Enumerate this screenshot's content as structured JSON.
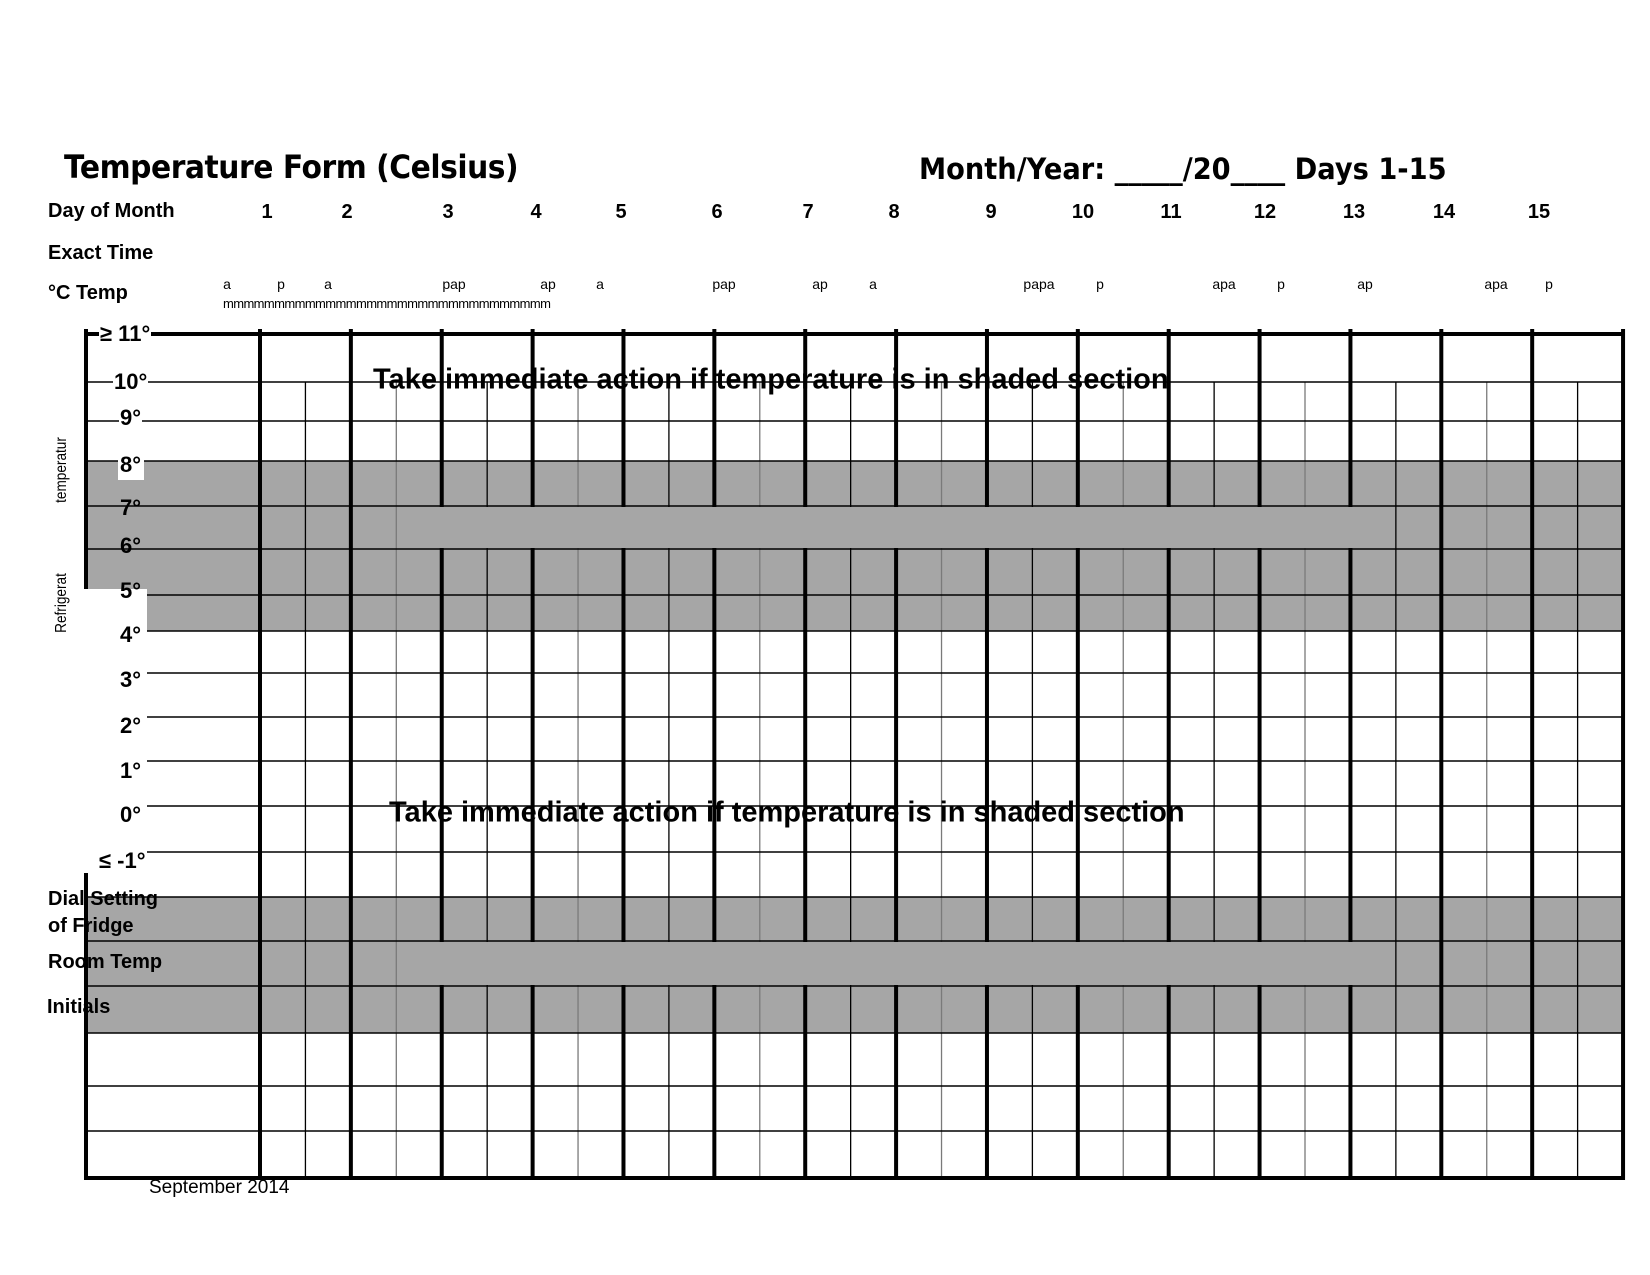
{
  "header": {
    "title": "Temperature Form (Celsius)",
    "month_year_label": "Month/Year: _____/20____ Days 1-15"
  },
  "row_labels": {
    "day_of_month": "Day of Month",
    "exact_time": "Exact Time",
    "temp": "°C Temp"
  },
  "days": [
    "1",
    "2",
    "3",
    "4",
    "5",
    "6",
    "7",
    "8",
    "9",
    "10",
    "11",
    "12",
    "13",
    "14",
    "15"
  ],
  "time_markers": [
    "a",
    "p",
    "a",
    "pap",
    "ap",
    "a",
    "pap",
    "ap",
    "a",
    "papa",
    "p",
    "apa",
    "p",
    "ap",
    "apa",
    "p"
  ],
  "time_marker_underline": "mmmmmmmmmmmmmmmmmmmmmmmmmmmmmmmm",
  "temperature_scale": [
    "≥ 11°",
    "10°",
    "9°",
    "8°",
    "7°",
    "6°",
    "5°",
    "4°",
    "3°",
    "2°",
    "1°",
    "0°",
    "≤ -1°"
  ],
  "side_label": {
    "top": "temperatur",
    "bottom": "Refrigerat"
  },
  "warnings": [
    "Take immediate action if temperature is in shaded section",
    "Take immediate action if temperature is in shaded section"
  ],
  "bottom_rows": {
    "dial_line1": "Dial Setting",
    "dial_line2": "of Fridge",
    "room_temp": "Room Temp",
    "initials": "Initials"
  },
  "footer": "September 2014",
  "colors": {
    "shade": "#a6a6a6",
    "line": "#000000",
    "thin_alt": "#7a7a7a"
  }
}
